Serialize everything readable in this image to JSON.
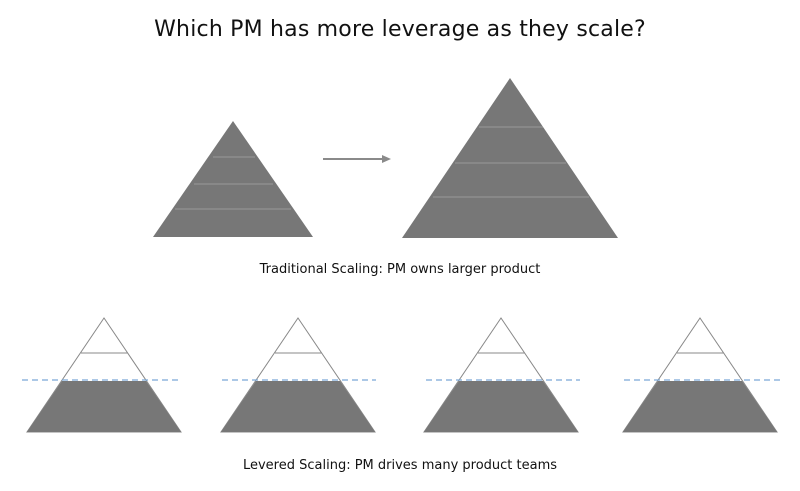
{
  "title": "Which PM has more leverage as they scale?",
  "captions": {
    "traditional": "Traditional Scaling: PM owns larger product",
    "levered": "Levered Scaling: PM drives many product teams"
  },
  "colors": {
    "fill": "#777777",
    "band_line": "#9a9a9a",
    "outline": "#888888",
    "arrow": "#8a8a8a",
    "dashed": "#7aa7d6"
  }
}
